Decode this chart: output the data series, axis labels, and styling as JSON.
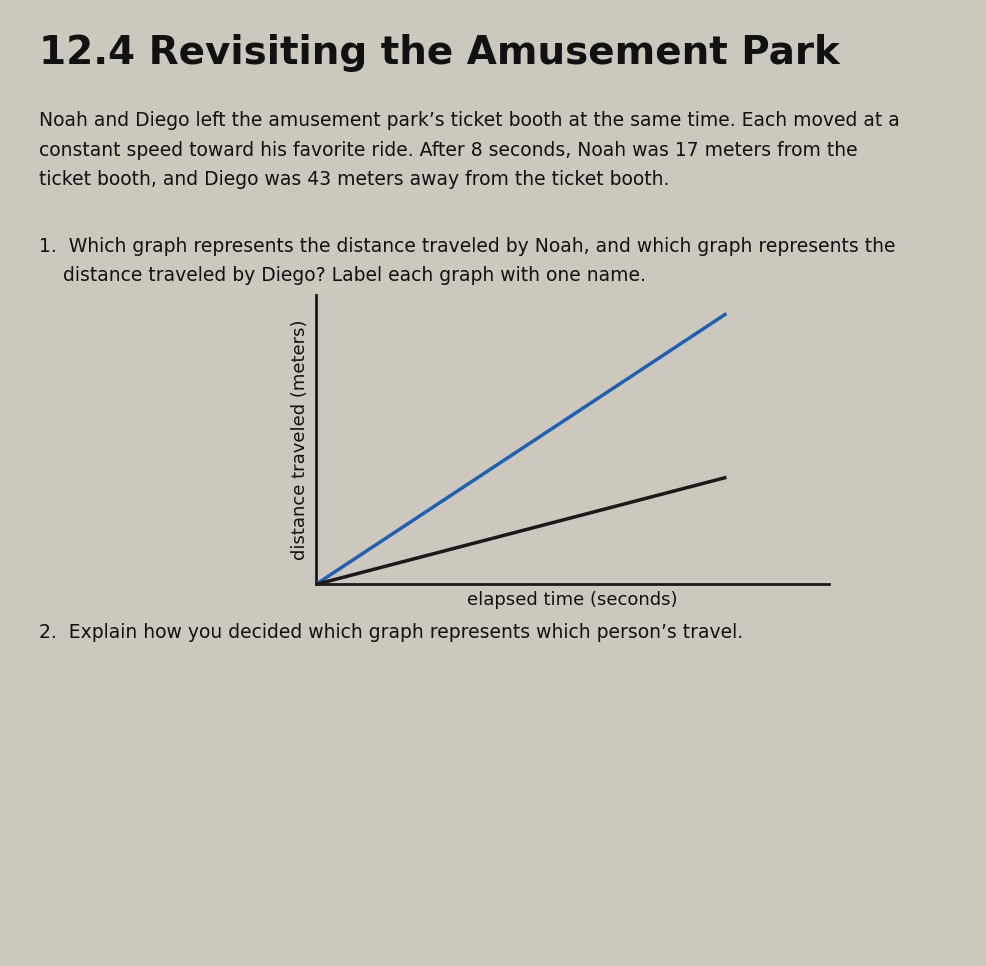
{
  "title": "12.4 Revisiting the Amusement Park",
  "paragraph1": "Noah and Diego left the amusement park’s ticket booth at the same time. Each moved at a\nconstant speed toward his favorite ride. After 8 seconds, Noah was 17 meters from the\nticket booth, and Diego was 43 meters away from the ticket booth.",
  "question1": "1.  Which graph represents the distance traveled by Noah, and which graph represents the\n    distance traveled by Diego? Label each graph with one name.",
  "question2": "2.  Explain how you decided which graph represents which person’s travel.",
  "xlabel": "elapsed time (seconds)",
  "ylabel": "distance traveled (meters)",
  "background_color": "#ccc8be",
  "line1_color": "#2060b0",
  "line2_color": "#1a1a1a",
  "line1_x": [
    0,
    8
  ],
  "line1_y": [
    0,
    43
  ],
  "line2_x": [
    0,
    8
  ],
  "line2_y": [
    0,
    17
  ],
  "xlim": [
    0,
    10
  ],
  "ylim": [
    0,
    46
  ]
}
